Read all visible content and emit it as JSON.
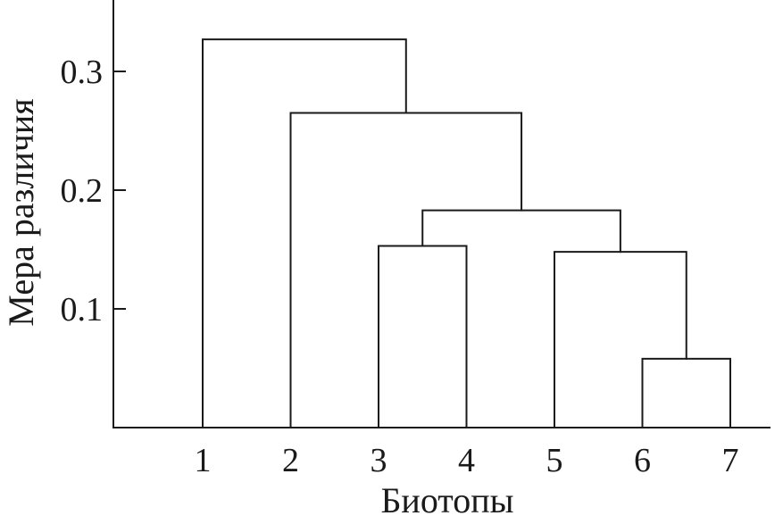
{
  "chart_data": {
    "type": "dendrogram",
    "xlabel": "Биотопы",
    "ylabel": "Мера различия",
    "leaves": [
      "1",
      "2",
      "3",
      "4",
      "5",
      "6",
      "7"
    ],
    "yticks": [
      "0.1",
      "0.2",
      "0.3"
    ],
    "ytick_values": [
      0.1,
      0.2,
      0.3
    ],
    "ylim": [
      0,
      0.355
    ],
    "merges": [
      {
        "left": "6",
        "right": "7",
        "height": 0.058
      },
      {
        "left": "3",
        "right": "4",
        "height": 0.153
      },
      {
        "left": "5",
        "right": "6-7",
        "height": 0.148
      },
      {
        "left": "3-4",
        "right": "5-6-7",
        "height": 0.183
      },
      {
        "left": "2",
        "right": "3-4-5-6-7",
        "height": 0.265
      },
      {
        "left": "1",
        "right": "2-3-4-5-6-7",
        "height": 0.327
      }
    ],
    "grid": false,
    "legend": "none",
    "colors": {
      "line": "#1a1a1a",
      "background": "#ffffff"
    }
  }
}
